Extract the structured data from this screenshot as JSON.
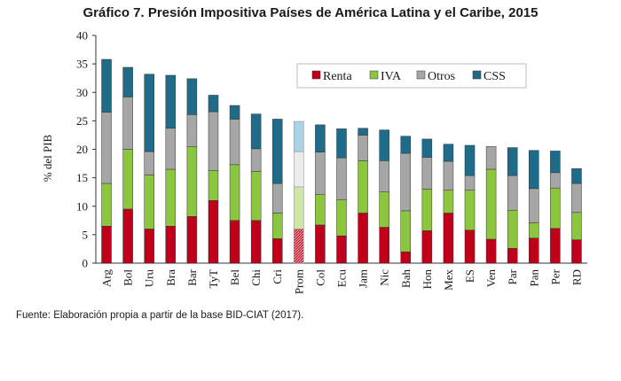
{
  "title": "Gráfico 7. Presión Impositiva Países de América Latina y el Caribe, 2015",
  "source": "Fuente: Elaboración propia a partir de la base BID-CIAT (2017).",
  "colors": {
    "Renta": "#c0001a",
    "IVA": "#8cc63f",
    "Otros": "#a6a6a6",
    "CSS": "#1f6b8a",
    "Renta_light": "#e08a94",
    "IVA_light": "#cfe6a8",
    "Otros_light": "#ececec",
    "CSS_light": "#a9d3e6"
  },
  "chart_data": {
    "type": "bar",
    "stacked": true,
    "title": "Gráfico 7. Presión Impositiva Países de América Latina y el Caribe, 2015",
    "xlabel": "",
    "ylabel": "% del PIB",
    "ylim": [
      0,
      40
    ],
    "yticks": [
      "0",
      "5",
      "10",
      "15",
      "20",
      "25",
      "30",
      "35",
      "40"
    ],
    "grid": false,
    "legend_position": "top-right",
    "categories": [
      "Arg",
      "Bol",
      "Uru",
      "Bra",
      "Bar",
      "TyT",
      "Bel",
      "Chi",
      "Cri",
      "Prom",
      "Col",
      "Ecu",
      "Jam",
      "Nic",
      "Bah",
      "Hon",
      "Mex",
      "ES",
      "Ven",
      "Par",
      "Pan",
      "Per",
      "RD"
    ],
    "highlight_category": "Prom",
    "series": [
      {
        "name": "Renta",
        "values": [
          6.5,
          9.5,
          6.0,
          6.5,
          8.2,
          11.0,
          7.5,
          7.5,
          4.3,
          6.0,
          6.7,
          4.8,
          8.8,
          6.3,
          2.0,
          5.7,
          8.8,
          5.8,
          4.2,
          2.6,
          4.4,
          6.1,
          4.1
        ]
      },
      {
        "name": "IVA",
        "values": [
          7.5,
          10.5,
          9.5,
          10.0,
          12.3,
          5.3,
          9.8,
          8.6,
          4.5,
          7.4,
          5.4,
          6.3,
          9.2,
          6.2,
          7.2,
          7.3,
          4.0,
          7.0,
          12.3,
          6.7,
          2.7,
          7.1,
          4.8
        ]
      },
      {
        "name": "Otros",
        "values": [
          12.5,
          9.2,
          4.1,
          7.2,
          5.6,
          10.3,
          8.0,
          4.0,
          5.2,
          6.2,
          7.4,
          7.4,
          4.5,
          5.5,
          10.1,
          5.6,
          5.1,
          2.6,
          4.0,
          6.1,
          6.0,
          2.7,
          5.1
        ]
      },
      {
        "name": "CSS",
        "values": [
          9.3,
          5.2,
          13.6,
          9.3,
          6.3,
          2.9,
          2.4,
          6.1,
          11.3,
          5.3,
          4.8,
          5.1,
          1.2,
          5.4,
          3.0,
          3.2,
          3.0,
          5.3,
          0.0,
          4.9,
          6.7,
          3.8,
          2.6
        ]
      }
    ]
  }
}
